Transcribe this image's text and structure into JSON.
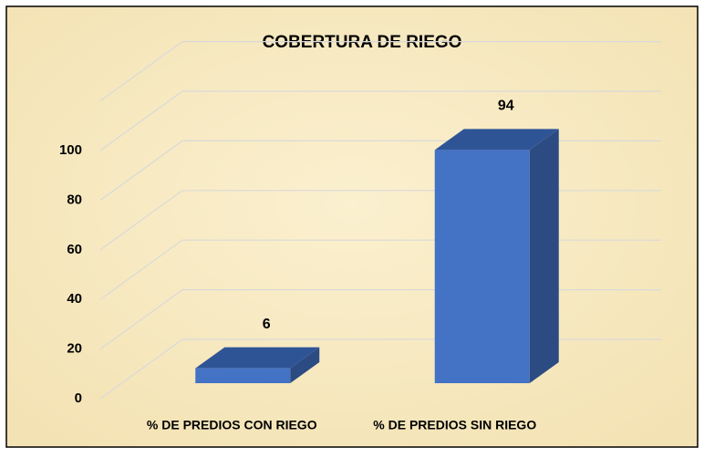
{
  "chart_data": {
    "type": "bar3d",
    "title": "COBERTURA DE RIEGO",
    "categories": [
      "% DE PREDIOS CON RIEGO",
      "% DE PREDIOS SIN RIEGO"
    ],
    "values": [
      6,
      94
    ],
    "color": "#4472c4",
    "ylim": [
      0,
      120
    ],
    "yticks": [
      0,
      20,
      40,
      60,
      80,
      100
    ],
    "grid": true
  }
}
